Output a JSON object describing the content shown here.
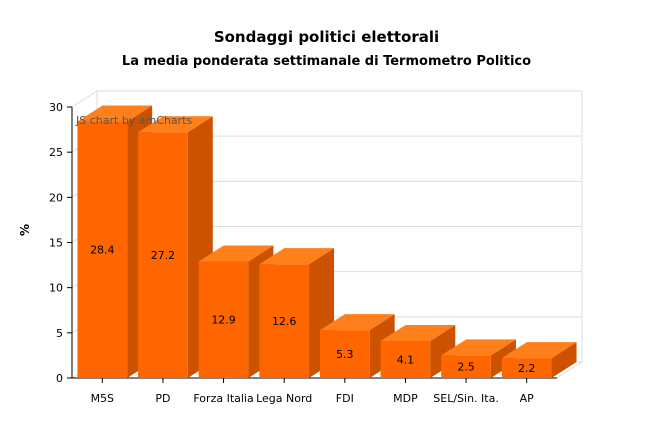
{
  "chart_data": {
    "type": "bar",
    "title": "Sondaggi politici elettorali",
    "subtitle": "La media ponderata settimanale di Termometro Politico",
    "ylabel": "%",
    "xlabel": "",
    "ylim": [
      0,
      30
    ],
    "yticks": [
      "0",
      "5",
      "10",
      "15",
      "20",
      "25",
      "30"
    ],
    "categories": [
      "M5S",
      "PD",
      "Forza Italia",
      "Lega Nord",
      "FDI",
      "MDP",
      "SEL/Sin. Ita.",
      "AP"
    ],
    "values": [
      28.4,
      27.2,
      12.9,
      12.6,
      5.3,
      4.1,
      2.5,
      2.2
    ],
    "value_labels": [
      "28.4",
      "27.2",
      "12.9",
      "12.6",
      "5.3",
      "4.1",
      "2.5",
      "2.2"
    ],
    "grid": true,
    "bar_style": "3d",
    "colors": {
      "front": "#ff6600",
      "top": "#ff7f1a",
      "side": "#cc5200",
      "grid": "#dddddd"
    }
  },
  "credit": "JS chart by amCharts"
}
